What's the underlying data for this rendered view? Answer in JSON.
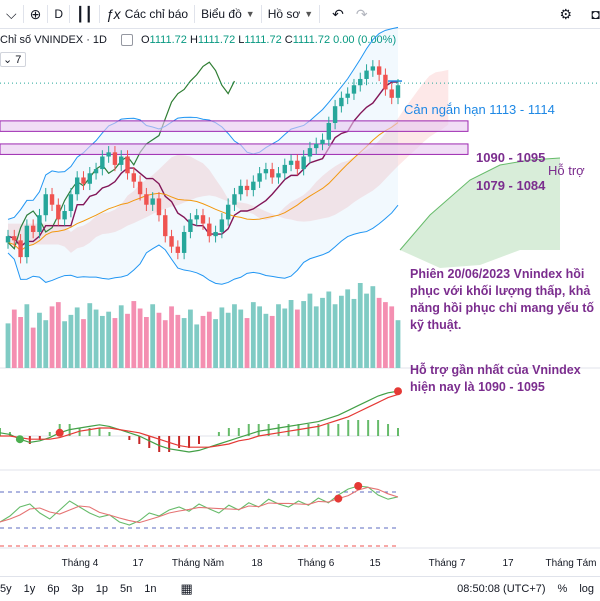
{
  "toolbar": {
    "interval": "D",
    "indicators_label": "Các chỉ báo",
    "layout_label": "Biểu đồ",
    "profile_label": "Hồ sơ"
  },
  "legend": {
    "symbol": "Chỉ số VNINDEX · 1D",
    "open_lbl": "O",
    "open": "1111.72",
    "high_lbl": "H",
    "high": "1111.72",
    "low_lbl": "L",
    "low": "1111.72",
    "close_lbl": "C",
    "close": "1111.72",
    "change": "0.00 (0.00%)",
    "collapse_count": "7"
  },
  "annotations": {
    "resistance": "Cản ngắn hạn 1113 - 1114",
    "zone1": "1090 - 1095",
    "support_word": "Hỗ trợ",
    "zone2": "1079 - 1084",
    "note1": "Phiên 20/06/2023 Vnindex hồi phục với khối lượng thấp, khả năng hồi phục chỉ mang yếu tố kỹ thuật.",
    "note2": "Hỗ trợ gần nhất của Vnindex hiện nay là 1090 - 1095"
  },
  "time_axis": [
    "Tháng 4",
    "17",
    "Tháng Năm",
    "18",
    "Tháng 6",
    "15",
    "Tháng 7",
    "17",
    "Tháng Tám"
  ],
  "bottom": {
    "ranges": [
      "5y",
      "1y",
      "6p",
      "3p",
      "1p",
      "5n",
      "1n"
    ],
    "time": "08:50:08 (UTC+7)",
    "percent": "%",
    "log": "log"
  },
  "colors": {
    "up": "#26a69a",
    "down": "#ef5350",
    "zone_fill": "#e7c8f0",
    "zone_border": "#9c27b0",
    "annotation": "#7b2d8e",
    "resistance": "#1e88e5"
  },
  "chart_data": {
    "type": "candlestick",
    "symbol": "VNINDEX",
    "interval": "1D",
    "last": {
      "open": 1111.72,
      "high": 1111.72,
      "low": 1111.72,
      "close": 1111.72,
      "change": 0.0,
      "change_pct": 0.0
    },
    "levels": {
      "resistance": [
        1113,
        1114
      ],
      "support_zones": [
        [
          1090,
          1095
        ],
        [
          1079,
          1084
        ]
      ]
    },
    "price_range": [
      1000,
      1125
    ],
    "closes": [
      1040,
      1038,
      1030,
      1045,
      1042,
      1050,
      1060,
      1055,
      1048,
      1052,
      1060,
      1068,
      1065,
      1070,
      1072,
      1078,
      1080,
      1074,
      1078,
      1070,
      1066,
      1060,
      1055,
      1058,
      1050,
      1040,
      1035,
      1032,
      1042,
      1048,
      1050,
      1046,
      1040,
      1042,
      1048,
      1055,
      1060,
      1064,
      1062,
      1066,
      1070,
      1072,
      1068,
      1070,
      1074,
      1076,
      1072,
      1078,
      1082,
      1084,
      1086,
      1094,
      1102,
      1106,
      1108,
      1112,
      1115,
      1119,
      1121,
      1117,
      1110,
      1106,
      1112
    ],
    "volume": [
      42,
      55,
      48,
      60,
      38,
      52,
      45,
      58,
      62,
      44,
      50,
      57,
      46,
      61,
      55,
      49,
      53,
      47,
      59,
      51,
      63,
      56,
      48,
      60,
      52,
      45,
      58,
      50,
      47,
      55,
      41,
      49,
      53,
      46,
      57,
      52,
      60,
      55,
      47,
      62,
      58,
      51,
      49,
      60,
      56,
      64,
      55,
      63,
      70,
      58,
      66,
      72,
      60,
      68,
      74,
      65,
      80,
      70,
      77,
      66,
      62,
      58,
      45
    ],
    "macd": [
      0.2,
      0.1,
      -0.2,
      -0.4,
      -0.3,
      -0.1,
      0.2,
      0.4,
      0.5,
      0.6,
      0.7,
      0.6,
      0.4,
      0.2,
      0.0,
      -0.3,
      -0.6,
      -0.8,
      -0.9,
      -1.0,
      -0.9,
      -0.7,
      -0.5,
      -0.3,
      -0.1,
      0.1,
      0.3,
      0.4,
      0.5,
      0.6,
      0.7,
      0.8,
      0.9,
      1.1,
      1.3,
      1.6,
      1.9,
      2.2,
      2.5,
      2.7,
      2.8
    ],
    "signal": [
      0.0,
      0.0,
      -0.1,
      -0.2,
      -0.2,
      -0.2,
      -0.1,
      0.1,
      0.3,
      0.4,
      0.5,
      0.5,
      0.4,
      0.3,
      0.2,
      0.0,
      -0.2,
      -0.4,
      -0.6,
      -0.7,
      -0.7,
      -0.7,
      -0.6,
      -0.5,
      -0.3,
      -0.2,
      0.0,
      0.1,
      0.2,
      0.3,
      0.4,
      0.5,
      0.6,
      0.8,
      1.0,
      1.2,
      1.5,
      1.8,
      2.1,
      2.4,
      2.6
    ],
    "stoch": [
      30,
      40,
      55,
      60,
      45,
      35,
      50,
      65,
      55,
      45,
      38,
      42,
      30,
      25,
      32,
      45,
      40,
      50,
      55,
      48,
      60,
      52,
      45,
      58,
      50,
      62,
      55,
      68,
      60,
      55,
      65,
      58,
      70,
      62,
      75,
      85,
      90,
      88,
      75,
      68,
      72
    ]
  }
}
